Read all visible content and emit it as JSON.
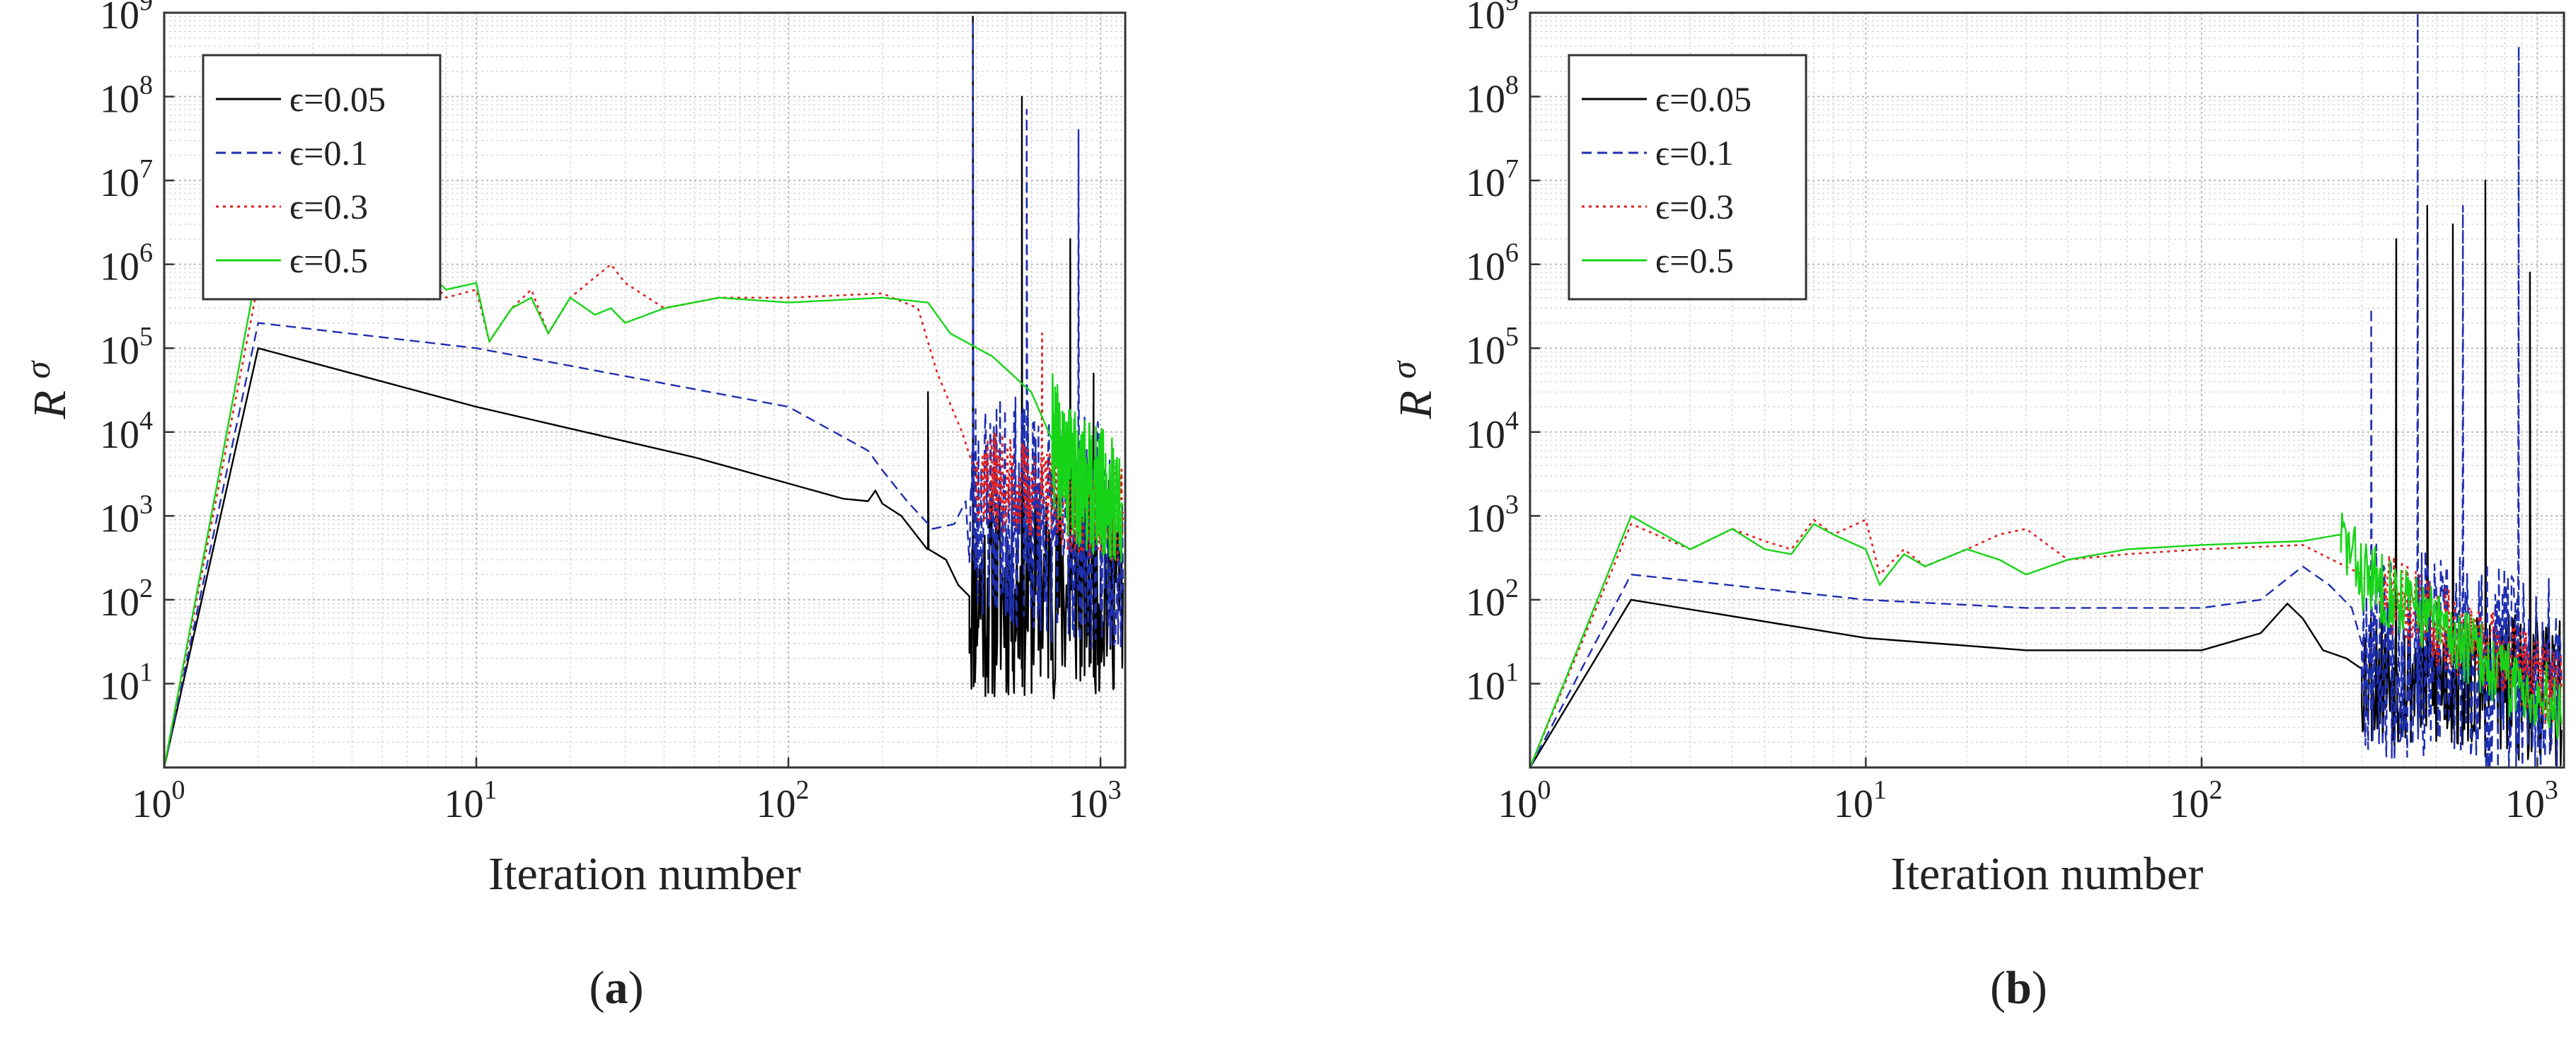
{
  "chart_data": [
    {
      "type": "line",
      "panel_label": "(a)",
      "panel_letter": "a",
      "xlabel": "Iteration number",
      "ylabel": "R",
      "ylabel_subscript": "σ",
      "xscale": "log",
      "yscale": "log",
      "xlim": [
        1,
        1200
      ],
      "ylim": [
        1,
        1000000000
      ],
      "x_ticks": [
        {
          "base": "10",
          "exp": "0"
        },
        {
          "base": "10",
          "exp": "1"
        },
        {
          "base": "10",
          "exp": "2"
        },
        {
          "base": "10",
          "exp": "3"
        }
      ],
      "y_ticks": [
        {
          "base": "10",
          "exp": "1"
        },
        {
          "base": "10",
          "exp": "2"
        },
        {
          "base": "10",
          "exp": "3"
        },
        {
          "base": "10",
          "exp": "4"
        },
        {
          "base": "10",
          "exp": "5"
        },
        {
          "base": "10",
          "exp": "6"
        },
        {
          "base": "10",
          "exp": "7"
        },
        {
          "base": "10",
          "exp": "8"
        },
        {
          "base": "10",
          "exp": "9"
        }
      ],
      "grid": true,
      "legend_position": "top-left",
      "series": [
        {
          "name": "ϵ=0.05",
          "color": "#000000",
          "dash": "solid",
          "points": [
            [
              1,
              1
            ],
            [
              2,
              100000
            ],
            [
              10,
              20000
            ],
            [
              50,
              5000
            ],
            [
              150,
              1600
            ],
            [
              180,
              1500
            ],
            [
              190,
              2000
            ],
            [
              200,
              1400
            ],
            [
              230,
              1000
            ],
            [
              280,
              400
            ],
            [
              320,
              300
            ],
            [
              350,
              150
            ],
            [
              380,
              110
            ],
            [
              1100,
              150
            ]
          ],
          "noise": {
            "start": 380,
            "end": 1180,
            "center": 250,
            "spread": 1.3,
            "spikes": [
              [
                280,
                30000
              ],
              [
                390,
                900000000
              ],
              [
                560,
                100000000
              ],
              [
                800,
                2000000
              ],
              [
                950,
                50000
              ]
            ],
            "seed": 11
          }
        },
        {
          "name": "ϵ=0.1",
          "color": "#1f2fb0",
          "dash": "dashed",
          "points": [
            [
              1,
              1
            ],
            [
              2,
              200000
            ],
            [
              10,
              100000
            ],
            [
              100,
              20000
            ],
            [
              180,
              6000
            ],
            [
              200,
              3500
            ],
            [
              240,
              1500
            ],
            [
              290,
              700
            ],
            [
              340,
              800
            ],
            [
              370,
              1500
            ],
            [
              1100,
              500
            ]
          ],
          "noise": {
            "start": 380,
            "end": 1180,
            "center": 500,
            "spread": 1.4,
            "spikes": [
              [
                390,
                800000000
              ],
              [
                580,
                70000000
              ],
              [
                850,
                40000000
              ]
            ],
            "seed": 23
          }
        },
        {
          "name": "ϵ=0.3",
          "color": "#e02020",
          "dash": "dotted",
          "points": [
            [
              1,
              1
            ],
            [
              2,
              600000
            ],
            [
              3,
              400000
            ],
            [
              4,
              700000
            ],
            [
              5,
              500000
            ],
            [
              6,
              600000
            ],
            [
              7,
              700000
            ],
            [
              8,
              400000
            ],
            [
              10,
              500000
            ],
            [
              11,
              120000
            ],
            [
              13,
              300000
            ],
            [
              15,
              500000
            ],
            [
              17,
              150000
            ],
            [
              20,
              400000
            ],
            [
              24,
              700000
            ],
            [
              27,
              1000000
            ],
            [
              30,
              600000
            ],
            [
              40,
              300000
            ],
            [
              60,
              400000
            ],
            [
              100,
              400000
            ],
            [
              200,
              450000
            ],
            [
              260,
              300000
            ],
            [
              300,
              50000
            ],
            [
              360,
              10000
            ],
            [
              400,
              3000
            ],
            [
              1100,
              1000
            ]
          ],
          "noise": {
            "start": 400,
            "end": 1180,
            "center": 1000,
            "spread": 0.6,
            "spikes": [
              [
                650,
                150000
              ]
            ],
            "seed": 37
          }
        },
        {
          "name": "ϵ=0.5",
          "color": "#18d418",
          "dash": "solid",
          "points": [
            [
              1,
              1
            ],
            [
              2,
              1000000
            ],
            [
              3,
              400000
            ],
            [
              4,
              700000
            ],
            [
              5,
              500000
            ],
            [
              6,
              400000
            ],
            [
              7,
              800000
            ],
            [
              8,
              500000
            ],
            [
              10,
              600000
            ],
            [
              11,
              120000
            ],
            [
              13,
              300000
            ],
            [
              15,
              400000
            ],
            [
              17,
              150000
            ],
            [
              20,
              400000
            ],
            [
              24,
              250000
            ],
            [
              27,
              300000
            ],
            [
              30,
              200000
            ],
            [
              40,
              300000
            ],
            [
              60,
              400000
            ],
            [
              100,
              350000
            ],
            [
              200,
              400000
            ],
            [
              280,
              350000
            ],
            [
              330,
              150000
            ],
            [
              450,
              80000
            ],
            [
              600,
              30000
            ],
            [
              700,
              8000
            ],
            [
              800,
              3000
            ],
            [
              1100,
              1500
            ]
          ],
          "noise": {
            "start": 700,
            "end": 1180,
            "center": 1500,
            "spread": 0.8,
            "spikes": [],
            "seed": 41
          }
        }
      ]
    },
    {
      "type": "line",
      "panel_label": "(b)",
      "panel_letter": "b",
      "xlabel": "Iteration number",
      "ylabel": "R",
      "ylabel_subscript": "σ",
      "xscale": "log",
      "yscale": "log",
      "xlim": [
        1,
        1200
      ],
      "ylim": [
        1,
        1000000000
      ],
      "x_ticks": [
        {
          "base": "10",
          "exp": "0"
        },
        {
          "base": "10",
          "exp": "1"
        },
        {
          "base": "10",
          "exp": "2"
        },
        {
          "base": "10",
          "exp": "3"
        }
      ],
      "y_ticks": [
        {
          "base": "10",
          "exp": "1"
        },
        {
          "base": "10",
          "exp": "2"
        },
        {
          "base": "10",
          "exp": "3"
        },
        {
          "base": "10",
          "exp": "4"
        },
        {
          "base": "10",
          "exp": "5"
        },
        {
          "base": "10",
          "exp": "6"
        },
        {
          "base": "10",
          "exp": "7"
        },
        {
          "base": "10",
          "exp": "8"
        },
        {
          "base": "10",
          "exp": "9"
        }
      ],
      "grid": true,
      "legend_position": "top-left",
      "series": [
        {
          "name": "ϵ=0.05",
          "color": "#000000",
          "dash": "solid",
          "points": [
            [
              1,
              1
            ],
            [
              2,
              100
            ],
            [
              10,
              35
            ],
            [
              30,
              25
            ],
            [
              100,
              25
            ],
            [
              150,
              40
            ],
            [
              180,
              90
            ],
            [
              200,
              60
            ],
            [
              230,
              25
            ],
            [
              270,
              20
            ],
            [
              300,
              15
            ],
            [
              1100,
              8
            ]
          ],
          "noise": {
            "start": 300,
            "end": 1180,
            "center": 10,
            "spread": 0.9,
            "spikes": [
              [
                380,
                2000000
              ],
              [
                470,
                5000000
              ],
              [
                560,
                3000000
              ],
              [
                700,
                10000000
              ],
              [
                950,
                800000
              ]
            ],
            "seed": 53
          }
        },
        {
          "name": "ϵ=0.1",
          "color": "#1f2fb0",
          "dash": "dashed",
          "points": [
            [
              1,
              1
            ],
            [
              2,
              200
            ],
            [
              10,
              100
            ],
            [
              30,
              80
            ],
            [
              100,
              80
            ],
            [
              150,
              100
            ],
            [
              200,
              250
            ],
            [
              240,
              150
            ],
            [
              280,
              80
            ],
            [
              300,
              30
            ],
            [
              1100,
              10
            ]
          ],
          "noise": {
            "start": 300,
            "end": 1180,
            "center": 30,
            "spread": 1.3,
            "spikes": [
              [
                320,
                300000
              ],
              [
                440,
                1000000000
              ],
              [
                600,
                5000000
              ],
              [
                880,
                400000000
              ]
            ],
            "seed": 67
          }
        },
        {
          "name": "ϵ=0.3",
          "color": "#e02020",
          "dash": "dotted",
          "points": [
            [
              1,
              1
            ],
            [
              2,
              800
            ],
            [
              3,
              400
            ],
            [
              4,
              700
            ],
            [
              5,
              500
            ],
            [
              6,
              400
            ],
            [
              7,
              900
            ],
            [
              8,
              600
            ],
            [
              10,
              900
            ],
            [
              11,
              200
            ],
            [
              13,
              400
            ],
            [
              15,
              250
            ],
            [
              20,
              400
            ],
            [
              25,
              600
            ],
            [
              30,
              700
            ],
            [
              40,
              300
            ],
            [
              60,
              350
            ],
            [
              100,
              400
            ],
            [
              200,
              450
            ],
            [
              300,
              200
            ],
            [
              500,
              50
            ],
            [
              800,
              20
            ],
            [
              1100,
              10
            ]
          ],
          "noise": {
            "start": 350,
            "end": 1180,
            "center": 30,
            "spread": 0.5,
            "spikes": [],
            "seed": 71
          }
        },
        {
          "name": "ϵ=0.5",
          "color": "#18d418",
          "dash": "solid",
          "points": [
            [
              1,
              1
            ],
            [
              2,
              1000
            ],
            [
              3,
              400
            ],
            [
              4,
              700
            ],
            [
              5,
              400
            ],
            [
              6,
              350
            ],
            [
              7,
              800
            ],
            [
              8,
              600
            ],
            [
              10,
              400
            ],
            [
              11,
              150
            ],
            [
              13,
              350
            ],
            [
              15,
              250
            ],
            [
              20,
              400
            ],
            [
              25,
              300
            ],
            [
              30,
              200
            ],
            [
              40,
              300
            ],
            [
              60,
              400
            ],
            [
              100,
              450
            ],
            [
              200,
              500
            ],
            [
              260,
              600
            ],
            [
              300,
              200
            ],
            [
              400,
              100
            ],
            [
              600,
              30
            ],
            [
              800,
              12
            ],
            [
              1100,
              6
            ]
          ],
          "noise": {
            "start": 260,
            "end": 1180,
            "center": 60,
            "spread": 0.45,
            "spikes": [],
            "seed": 83
          }
        }
      ]
    }
  ]
}
